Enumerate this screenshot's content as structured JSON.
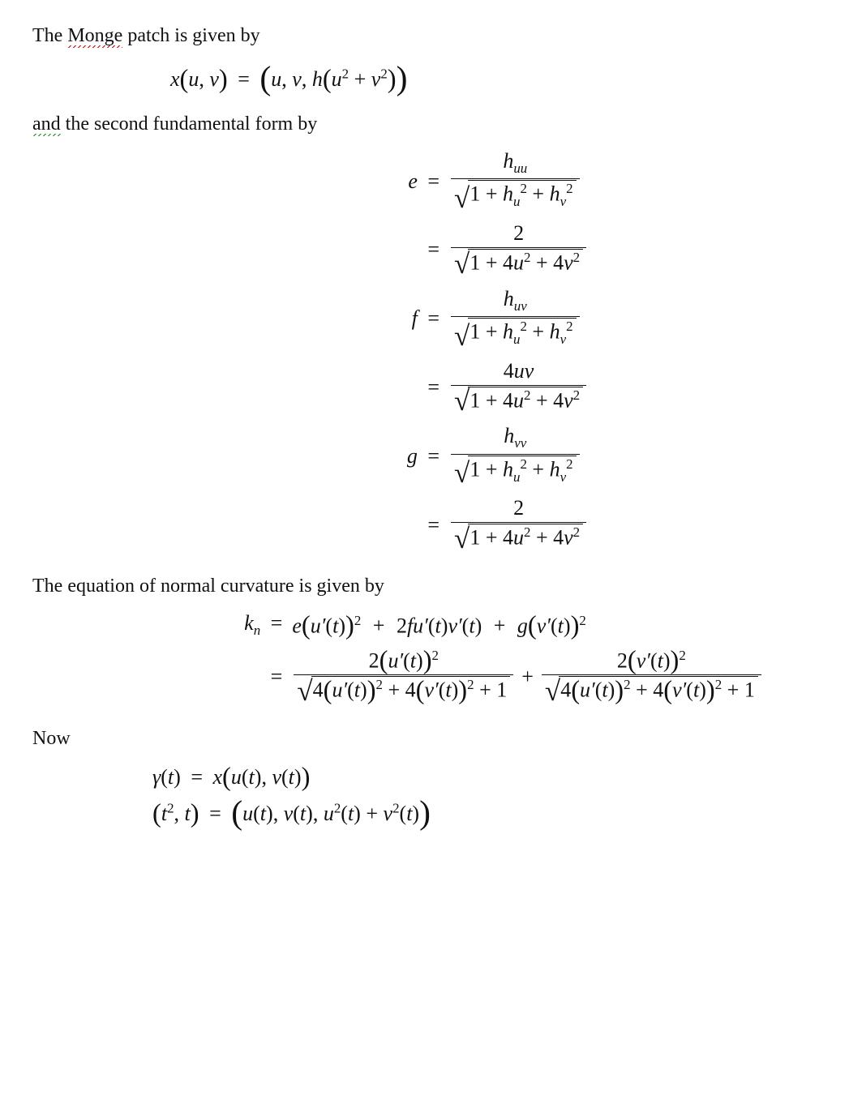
{
  "colors": {
    "text": "#111111",
    "background": "#ffffff",
    "spell_red": "#d00000",
    "grammar_green": "#1f8a1f"
  },
  "intro": {
    "pre": "The ",
    "word_monge": "Monge",
    "post_monge": " patch is given by"
  },
  "monge_eq": {
    "lhs": "x",
    "args": "u, v",
    "rhs_tuple_a": "u, v, h",
    "rhs_inner": "u",
    "rhs_inner2": "v",
    "sq": "2"
  },
  "and_line": {
    "word_and": "and",
    "post_and": " the second fundamental form by"
  },
  "efg": {
    "e_label": "e",
    "f_label": "f",
    "g_label": "g",
    "h": "h",
    "uu": "uu",
    "uv": "uv",
    "vv": "vv",
    "hu": "h",
    "hu_sub": "u",
    "hv_sub": "v",
    "one": "1",
    "two": "2",
    "four": "4",
    "fouruv": "4uv",
    "u2": "u",
    "v2": "v"
  },
  "normal_curv_line": "The equation of normal curvature is given by",
  "kn": {
    "k": "k",
    "n": "n",
    "e": "e",
    "f": "f",
    "g": "g",
    "u": "u",
    "v": "v",
    "t": "t",
    "two": "2",
    "four": "4",
    "one": "1",
    "prime": "′"
  },
  "now": "Now",
  "gamma": {
    "gamma": "γ",
    "t": "t",
    "x": "x",
    "u": "u",
    "v": "v",
    "two": "2"
  }
}
